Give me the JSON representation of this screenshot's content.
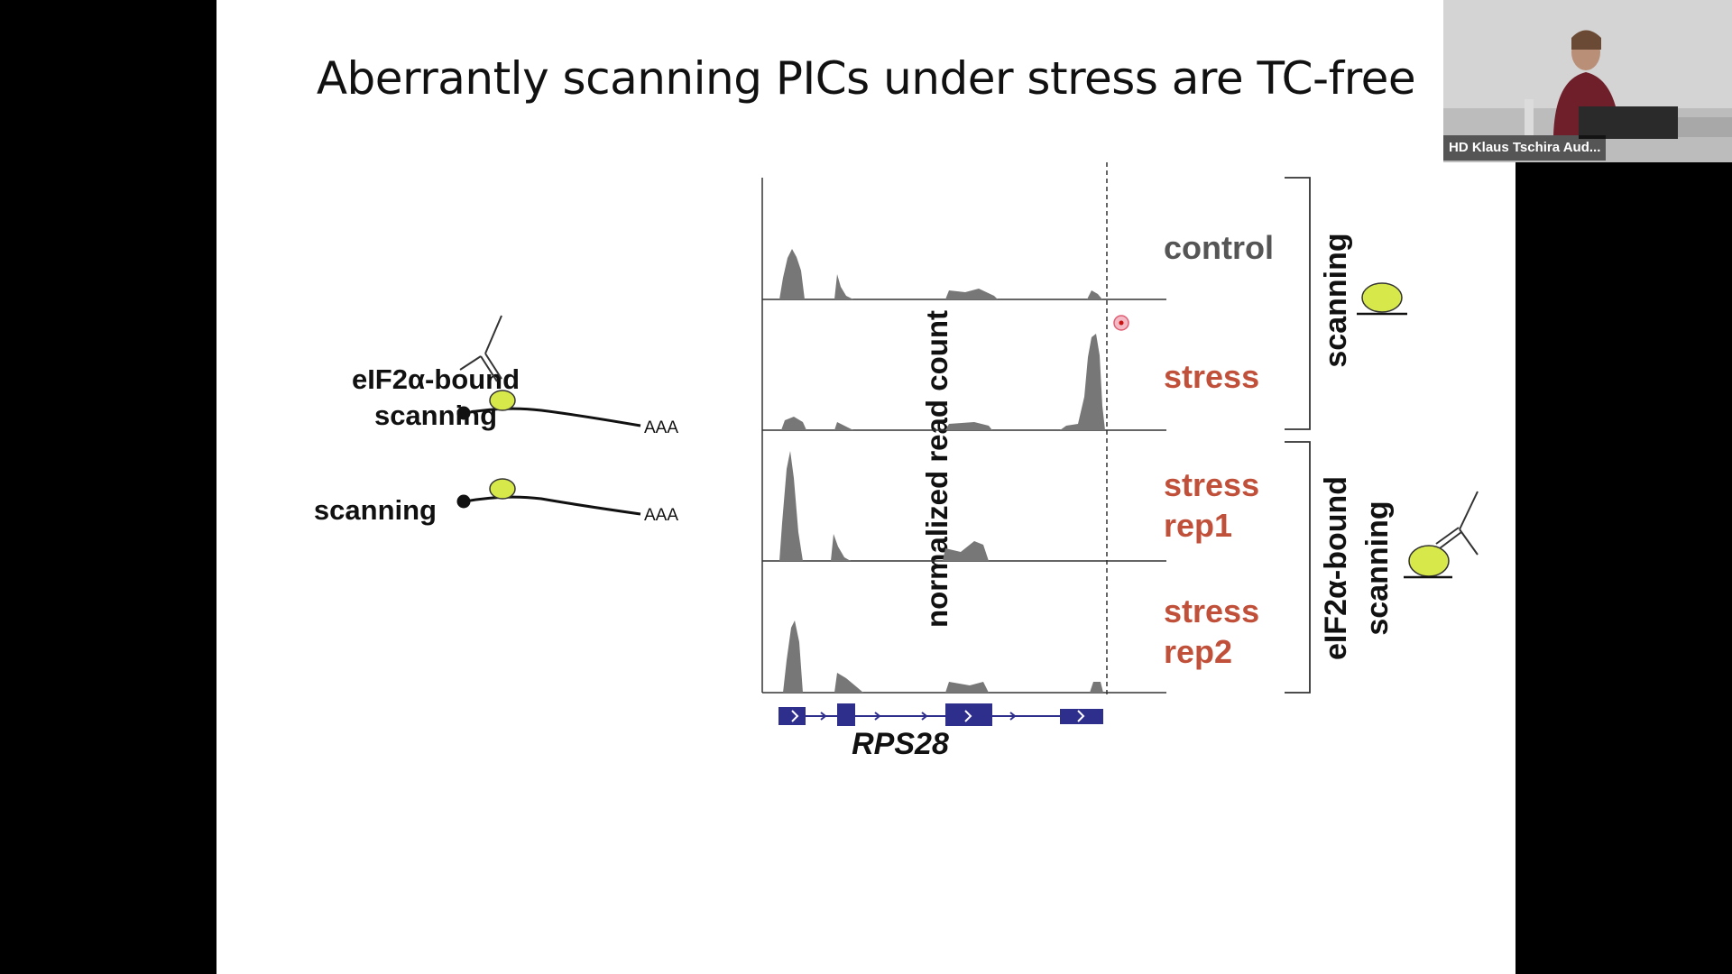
{
  "slide": {
    "title": "Aberrantly scanning PICs under stress are TC-free"
  },
  "legend": {
    "eif2_label_line1": "eIF2α-bound",
    "eif2_label_line2": "scanning",
    "scanning_label": "scanning",
    "polya_1": "AAA",
    "polya_2": "AAA"
  },
  "chart_data": {
    "type": "area",
    "ylabel": "normalized read count",
    "gene": "RPS28",
    "tracks": [
      {
        "name": "control",
        "color": "#555555"
      },
      {
        "name": "stress",
        "color": "#c0503a"
      },
      {
        "name": "stress rep1",
        "line1": "stress",
        "line2": "rep1",
        "color": "#c0503a"
      },
      {
        "name": "stress rep2",
        "line1": "stress",
        "line2": "rep2",
        "color": "#c0503a"
      }
    ],
    "groups": [
      {
        "line1": "scanning"
      },
      {
        "line1": "eIF2α-bound",
        "line2": "scanning"
      }
    ]
  },
  "webcam": {
    "name": "HD Klaus Tschira Aud..."
  },
  "colors": {
    "accent_red": "#c0503a",
    "ribosome_fill": "#d6e84a",
    "gene_blue": "#2e2e8c",
    "track_gray": "#777777"
  }
}
